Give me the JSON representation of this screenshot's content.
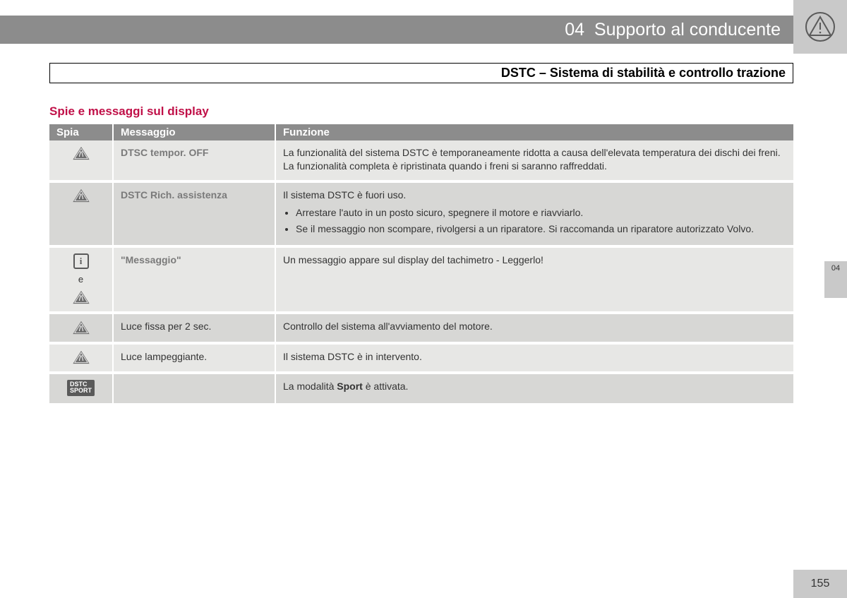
{
  "header": {
    "chapter_num": "04",
    "chapter_title": "Supporto al conducente"
  },
  "subheader": "DSTC – Sistema di stabilità e controllo trazione",
  "section_heading": "Spie e messaggi sul display",
  "columns": {
    "spia": "Spia",
    "messaggio": "Messaggio",
    "funzione": "Funzione"
  },
  "rows": [
    {
      "icon": "triangle",
      "msg_style": "bold",
      "message": "DTSC tempor. OFF",
      "function_text": "La funzionalità del sistema DSTC è temporaneamente ridotta a causa dell'elevata temperatura dei dischi dei freni. La funzionalità completa è ripristinata quando i freni si saranno raffreddati."
    },
    {
      "icon": "triangle",
      "msg_style": "bold",
      "message": "DSTC Rich. assistenza",
      "function_lead": "Il sistema DSTC è fuori uso.",
      "function_bullets": [
        "Arrestare l'auto in un posto sicuro, spegnere il motore e riavviarlo.",
        "Se il messaggio non scompare, rivolgersi a un riparatore. Si raccomanda un riparatore autorizzato Volvo."
      ]
    },
    {
      "icon": "square-e-triangle",
      "e_label": "e",
      "msg_style": "bold",
      "message": "\"Messaggio\"",
      "function_text": "Un messaggio appare sul display del tachimetro - Leggerlo!"
    },
    {
      "icon": "triangle",
      "msg_style": "plain",
      "message": "Luce fissa per 2 sec.",
      "function_text": "Controllo del sistema all'avviamento del motore."
    },
    {
      "icon": "triangle",
      "msg_style": "plain",
      "message": "Luce lampeggiante.",
      "function_text": "Il sistema DSTC è in intervento."
    },
    {
      "icon": "dstc-sport",
      "badge_line1": "DSTC",
      "badge_line2": "SPORT",
      "msg_style": "plain",
      "message": "",
      "function_prefix": "La modalità ",
      "function_bold": "Sport",
      "function_suffix": " è attivata."
    }
  ],
  "side_tab": "04",
  "page_number": "155",
  "colors": {
    "header_bar": "#8c8c8c",
    "corner_block": "#c9c9c9",
    "heading_red": "#c01048",
    "row_odd": "#e7e7e5",
    "row_even": "#d7d7d5",
    "msg_bold_color": "#7a7a7a"
  }
}
